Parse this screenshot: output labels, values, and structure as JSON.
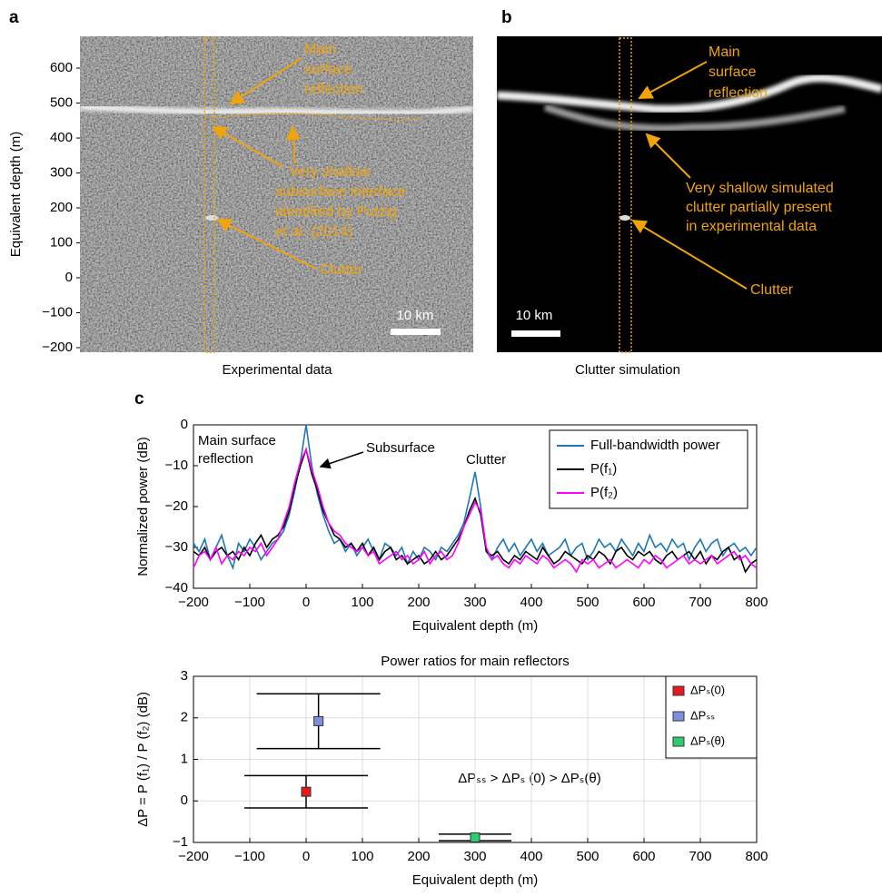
{
  "chart_data": [
    {
      "type": "image",
      "panel_label": "a",
      "ylabel": "Equivalent depth (m)",
      "ylim": [
        -213,
        691
      ],
      "yticks": [
        {
          "value": -200,
          "label": "−200"
        },
        {
          "value": -100,
          "label": "−100"
        },
        0,
        100,
        200,
        300,
        400,
        500,
        600
      ],
      "caption": "Experimental data",
      "scale_bar": "10 km",
      "annotations": [
        {
          "lines": [
            "Main",
            "surface",
            "reflection"
          ]
        },
        {
          "lines": [
            "Very shallow",
            "subsurface interface",
            "identified by Putzig",
            "et al. (2014)"
          ]
        },
        {
          "lines": [
            "Clutter"
          ]
        }
      ]
    },
    {
      "type": "image",
      "panel_label": "b",
      "caption": "Clutter simulation",
      "scale_bar": "10 km",
      "annotations": [
        {
          "lines": [
            "Main",
            "surface",
            "reflection"
          ]
        },
        {
          "lines": [
            "Very shallow simulated",
            "clutter partially present",
            "in experimental data"
          ]
        },
        {
          "lines": [
            "Clutter"
          ]
        }
      ]
    },
    {
      "type": "line",
      "panel_label": "c",
      "xlabel": "Equivalent depth (m)",
      "ylabel": "Normalized power (dB)",
      "xlim": [
        -200,
        800
      ],
      "ylim": [
        -40,
        0
      ],
      "xticks": [
        {
          "value": -200,
          "label": "−200"
        },
        {
          "value": -100,
          "label": "−100"
        },
        0,
        100,
        200,
        300,
        400,
        500,
        600,
        700,
        800
      ],
      "yticks": [
        {
          "value": -40,
          "label": "−40"
        },
        {
          "value": -30,
          "label": "−30"
        },
        {
          "value": -20,
          "label": "−20"
        },
        {
          "value": -10,
          "label": "−10"
        },
        0
      ],
      "grid": false,
      "legend": "upper right",
      "annotations": [
        {
          "lines": [
            "Main surface",
            "reflection"
          ]
        },
        {
          "lines": [
            "Subsurface"
          ]
        },
        {
          "lines": [
            "Clutter"
          ]
        }
      ],
      "x": [
        -200,
        -190,
        -180,
        -170,
        -160,
        -150,
        -140,
        -130,
        -120,
        -110,
        -100,
        -90,
        -80,
        -70,
        -60,
        -50,
        -40,
        -30,
        -20,
        -10,
        0,
        10,
        20,
        30,
        40,
        50,
        60,
        70,
        80,
        90,
        100,
        110,
        120,
        130,
        140,
        150,
        160,
        170,
        180,
        190,
        200,
        210,
        220,
        230,
        240,
        250,
        260,
        270,
        280,
        290,
        300,
        310,
        320,
        330,
        340,
        350,
        360,
        370,
        380,
        390,
        400,
        410,
        420,
        430,
        440,
        450,
        460,
        470,
        480,
        490,
        500,
        510,
        520,
        530,
        540,
        550,
        560,
        570,
        580,
        590,
        600,
        610,
        620,
        630,
        640,
        650,
        660,
        670,
        680,
        690,
        700,
        710,
        720,
        730,
        740,
        750,
        760,
        770,
        780,
        790,
        800
      ],
      "series": [
        {
          "name": "Full-bandwidth power",
          "color": "#1f77b4",
          "values": [
            -29,
            -31,
            -28,
            -33,
            -30,
            -27,
            -32,
            -35,
            -29,
            -31,
            -28,
            -30,
            -33,
            -31,
            -29,
            -28,
            -26,
            -22,
            -16,
            -9,
            0,
            -10,
            -17,
            -22,
            -26,
            -29,
            -28,
            -31,
            -29,
            -32,
            -30,
            -28,
            -31,
            -33,
            -29,
            -30,
            -32,
            -30,
            -34,
            -31,
            -33,
            -30,
            -31,
            -33,
            -30,
            -31,
            -29,
            -27,
            -24,
            -18,
            -11.5,
            -20,
            -31,
            -33,
            -30,
            -28,
            -31,
            -29,
            -32,
            -30,
            -28,
            -31,
            -29,
            -32,
            -31,
            -30,
            -28,
            -32,
            -30,
            -29,
            -33,
            -31,
            -28,
            -30,
            -29,
            -31,
            -28,
            -30,
            -32,
            -29,
            -31,
            -27,
            -30,
            -29,
            -31,
            -28,
            -30,
            -29,
            -33,
            -30,
            -28,
            -31,
            -29,
            -28,
            -32,
            -30,
            -29,
            -31,
            -30,
            -32,
            -30
          ]
        },
        {
          "name": "P(f₁)",
          "color": "#000000",
          "values": [
            -31,
            -32,
            -30,
            -33,
            -31,
            -30,
            -32,
            -31,
            -33,
            -30,
            -32,
            -29,
            -27,
            -30,
            -28,
            -27,
            -25,
            -21,
            -15,
            -10,
            -6,
            -12,
            -16,
            -21,
            -24,
            -27,
            -28,
            -30,
            -29,
            -31,
            -29,
            -32,
            -30,
            -33,
            -31,
            -30,
            -33,
            -32,
            -34,
            -33,
            -32,
            -34,
            -33,
            -31,
            -33,
            -32,
            -30,
            -28,
            -25,
            -21,
            -18,
            -22,
            -31,
            -32,
            -31,
            -33,
            -34,
            -32,
            -33,
            -31,
            -32,
            -33,
            -30,
            -32,
            -34,
            -33,
            -31,
            -32,
            -33,
            -34,
            -32,
            -33,
            -31,
            -32,
            -34,
            -31,
            -30,
            -32,
            -33,
            -31,
            -32,
            -31,
            -33,
            -34,
            -32,
            -31,
            -33,
            -32,
            -31,
            -33,
            -31,
            -34,
            -32,
            -33,
            -31,
            -30,
            -33,
            -32,
            -36,
            -34,
            -33
          ]
        },
        {
          "name": "P(f₂)",
          "color": "#ff00ff",
          "values": [
            -35,
            -32,
            -31,
            -33,
            -30,
            -34,
            -32,
            -33,
            -31,
            -32,
            -30,
            -31,
            -29,
            -32,
            -30,
            -28,
            -24,
            -20,
            -14,
            -9,
            -6,
            -11,
            -15,
            -20,
            -24,
            -26,
            -27,
            -29,
            -30,
            -31,
            -30,
            -32,
            -31,
            -34,
            -33,
            -32,
            -31,
            -33,
            -32,
            -34,
            -33,
            -31,
            -34,
            -32,
            -31,
            -33,
            -32,
            -29,
            -25,
            -22,
            -19,
            -21,
            -30,
            -33,
            -32,
            -34,
            -35,
            -33,
            -34,
            -32,
            -33,
            -34,
            -32,
            -33,
            -35,
            -34,
            -33,
            -34,
            -36,
            -33,
            -34,
            -33,
            -35,
            -34,
            -33,
            -35,
            -34,
            -33,
            -34,
            -35,
            -33,
            -34,
            -32,
            -33,
            -35,
            -34,
            -33,
            -32,
            -34,
            -33,
            -34,
            -33,
            -32,
            -34,
            -33,
            -32,
            -31,
            -33,
            -32,
            -34,
            -35
          ]
        }
      ]
    },
    {
      "type": "scatter",
      "title": "Power ratios for main reflectors",
      "xlabel": "Equivalent depth (m)",
      "ylabel": "ΔP = P (f₁) / P (f₂) (dB)",
      "xlim": [
        -200,
        800
      ],
      "ylim": [
        -1,
        3
      ],
      "xticks": [
        {
          "value": -200,
          "label": "−200"
        },
        {
          "value": -100,
          "label": "−100"
        },
        0,
        100,
        200,
        300,
        400,
        500,
        600,
        700,
        800
      ],
      "yticks": [
        {
          "value": -1,
          "label": "−1"
        },
        0,
        1,
        2,
        3
      ],
      "grid": true,
      "legend": "upper right",
      "annotations": [
        {
          "lines": [
            "ΔPₛₛ > ΔPₛ (0) > ΔPₛ(θ)"
          ]
        }
      ],
      "series": [
        {
          "name": "ΔPₛ(0)",
          "color": "#e41a1c",
          "x": [
            0
          ],
          "values": [
            0.22
          ],
          "yerr": [
            0.39
          ]
        },
        {
          "name": "ΔPₛₛ",
          "color": "#7f8fdf",
          "x": [
            22
          ],
          "values": [
            1.92
          ],
          "yerr": [
            0.66
          ]
        },
        {
          "name": "ΔPₛ(θ)",
          "color": "#2ecc71",
          "x": [
            300
          ],
          "values": [
            -0.88
          ],
          "yerr": [
            0.08
          ]
        }
      ]
    }
  ]
}
